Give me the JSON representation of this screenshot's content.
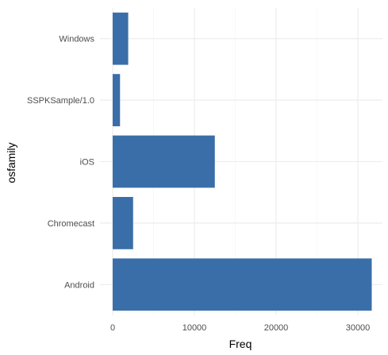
{
  "chart_data": {
    "type": "bar",
    "orientation": "horizontal",
    "categories": [
      "Android",
      "Chromecast",
      "iOS",
      "SSPKSample/1.0",
      "Windows"
    ],
    "values": [
      31700,
      2500,
      12500,
      900,
      1900
    ],
    "xlabel": "Freq",
    "ylabel": "osfamily",
    "xlim": [
      0,
      33000
    ],
    "xticks": [
      0,
      10000,
      20000,
      30000
    ],
    "xtick_labels": [
      "0",
      "10000",
      "20000",
      "30000"
    ],
    "grid": true,
    "legend": "none",
    "bar_color": "#3a6ea8"
  }
}
